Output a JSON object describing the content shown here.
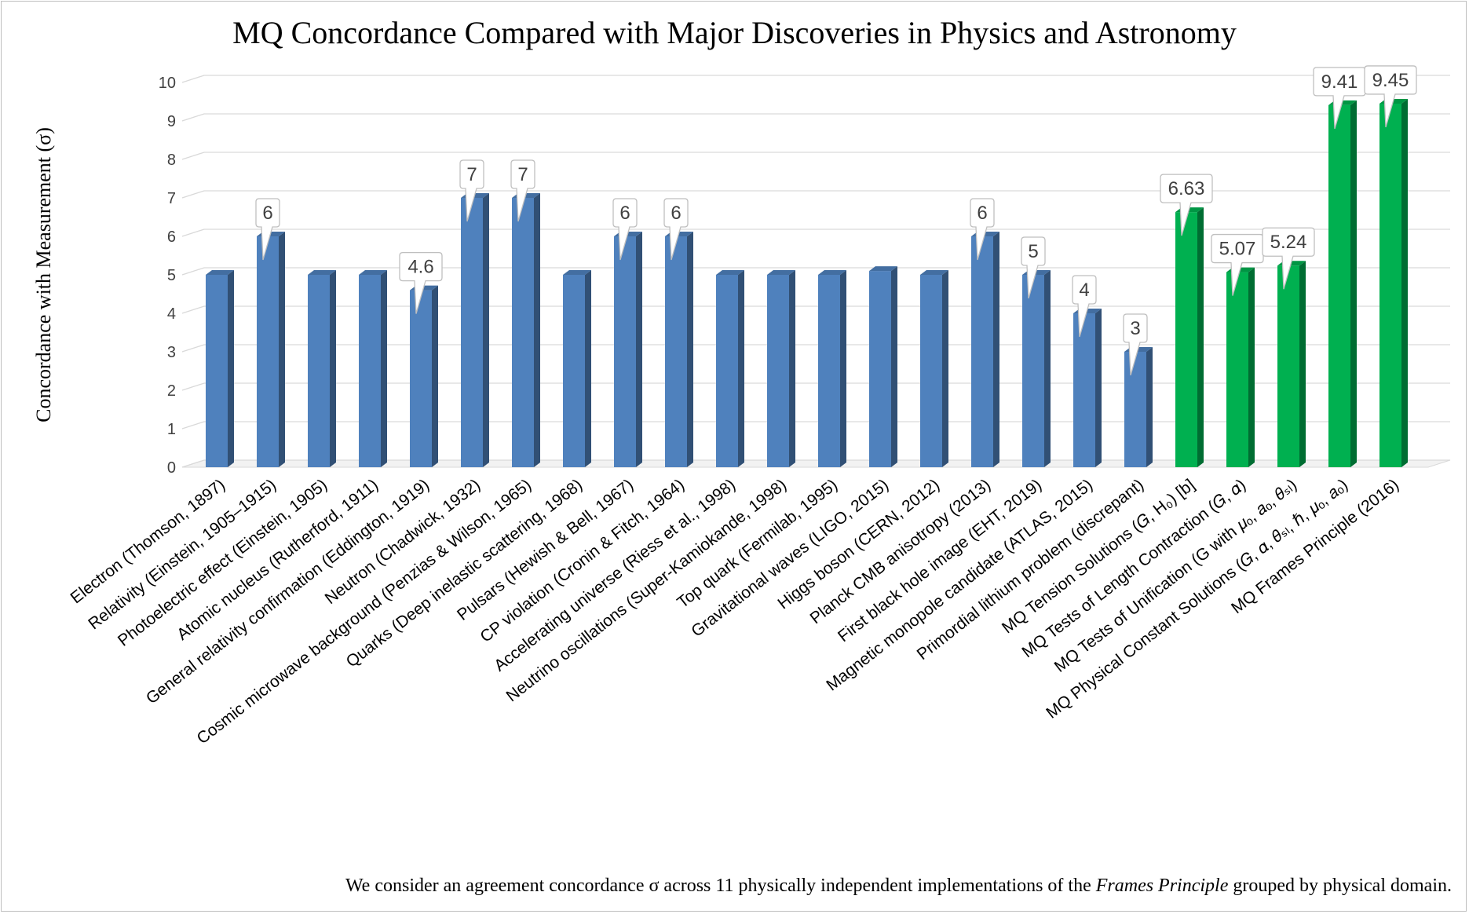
{
  "chart_data": {
    "type": "bar",
    "title": "MQ Concordance Compared with Major Discoveries in Physics and Astronomy",
    "xlabel": "",
    "ylabel": "Concordance with Measurement (σ)",
    "ylim": [
      0,
      10
    ],
    "yticks": [
      "0",
      "1",
      "2",
      "3",
      "4",
      "5",
      "6",
      "7",
      "8",
      "9",
      "10"
    ],
    "grid": true,
    "colors": {
      "historical": "#4f81bd",
      "mq": "#00b050"
    },
    "categories": [
      "Electron (Thomson, 1897)",
      "Relativity (Einstein, 1905–1915)",
      "Photoelectric effect (Einstein, 1905)",
      "Atomic nucleus (Rutherford, 1911)",
      "General relativity confirmation (Eddington, 1919)",
      "Neutron (Chadwick, 1932)",
      "Cosmic microwave background (Penzias & Wilson, 1965)",
      "Quarks (Deep inelastic scattering, 1968)",
      "Pulsars (Hewish & Bell, 1967)",
      "CP violation (Cronin & Fitch, 1964)",
      "Accelerating universe (Riess et al., 1998)",
      "Neutrino oscillations (Super-Kamiokande, 1998)",
      "Top quark (Fermilab, 1995)",
      "Gravitational waves (LIGO, 2015)",
      "Higgs boson (CERN, 2012)",
      "Planck CMB anisotropy (2013)",
      "First black hole image (EHT, 2019)",
      "Magnetic monopole candidate (ATLAS, 2015)",
      "Primordial lithium problem (discrepant)",
      "MQ Tension Solutions (𝐺, H₀) [b]",
      "MQ Tests of Length Contraction (𝐺, 𝛼)",
      "MQ Tests of Unification (G with 𝜇ₒ, 𝑎ₒ, 𝜃ₛₗ)",
      "MQ Physical Constant Solutions (𝐺, 𝛼, 𝜃ₛₗ, ℏ, 𝜇ₒ, 𝑎ₒ)",
      "MQ Frames Principle (2016)"
    ],
    "values": [
      5,
      6,
      5,
      5,
      4.6,
      7,
      7,
      5,
      6,
      6,
      5,
      5,
      5,
      5.1,
      5,
      6,
      5,
      4,
      3,
      6.63,
      5.07,
      5.24,
      9.41,
      9.45
    ],
    "groups": [
      "historical",
      "historical",
      "historical",
      "historical",
      "historical",
      "historical",
      "historical",
      "historical",
      "historical",
      "historical",
      "historical",
      "historical",
      "historical",
      "historical",
      "historical",
      "historical",
      "historical",
      "historical",
      "historical",
      "mq",
      "mq",
      "mq",
      "mq",
      "mq"
    ],
    "data_labels": [
      "",
      "6",
      "",
      "",
      "4.6",
      "7",
      "7",
      "",
      "6",
      "6",
      "",
      "",
      "",
      "",
      "",
      "6",
      "5",
      "4",
      "3",
      "6.63",
      "5.07",
      "5.24",
      "9.41",
      "9.45"
    ]
  },
  "caption": {
    "prefix": "We consider an agreement concordance σ across 11 physically independent implementations of the ",
    "emphasis": "Frames Principle",
    "suffix": " grouped by physical domain."
  }
}
